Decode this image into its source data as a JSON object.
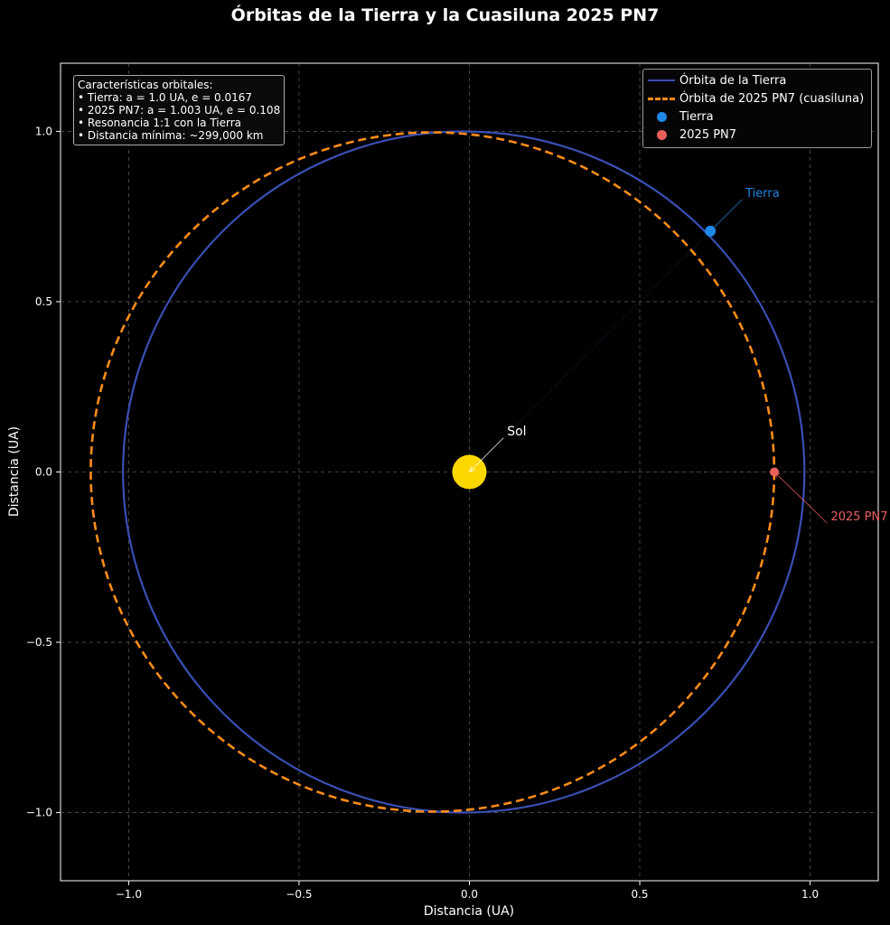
{
  "title": "Órbitas de la Tierra y la Cuasiluna 2025 PN7",
  "colors": {
    "background": "#000000",
    "earth_orbit": "#3a4fb3",
    "pn7_orbit": "#ff8c1a",
    "earth": "#1e88e5",
    "pn7": "#e8605c",
    "sun": "#ffd700"
  },
  "info_box": {
    "lines": [
      "Características orbitales:",
      "• Tierra: a = 1.0 UA, e = 0.0167",
      "• 2025 PN7: a = 1.003 UA, e = 0.108",
      "• Resonancia 1:1 con la Tierra",
      "• Distancia mínima: ~299,000 km"
    ]
  },
  "chart_data": {
    "type": "line",
    "title": "Órbitas de la Tierra y la Cuasiluna 2025 PN7",
    "xlabel": "Distancia (UA)",
    "ylabel": "Distancia (UA)",
    "xlim": [
      -1.2,
      1.2
    ],
    "ylim": [
      -1.2,
      1.2
    ],
    "xticks": [
      -1.0,
      -0.5,
      0.0,
      0.5,
      1.0
    ],
    "yticks": [
      -1.0,
      -0.5,
      0.0,
      0.5,
      1.0
    ],
    "xtick_labels": [
      "−1.0",
      "−0.5",
      "0.0",
      "0.5",
      "1.0"
    ],
    "ytick_labels": [
      "−1.0",
      "−0.5",
      "0.0",
      "0.5",
      "1.0"
    ],
    "grid": true,
    "legend_position": "top-right",
    "series": [
      {
        "name": "Órbita de la Tierra",
        "kind": "ellipse",
        "a": 1.0,
        "e": 0.0167,
        "style": "solid",
        "color": "#3a4fb3"
      },
      {
        "name": "Órbita de 2025 PN7 (cuasiluna)",
        "kind": "ellipse",
        "a": 1.003,
        "e": 0.108,
        "style": "dashed",
        "color": "#ff8c1a"
      },
      {
        "name": "Tierra",
        "kind": "point",
        "x": 0.707,
        "y": 0.707,
        "color": "#1e88e5"
      },
      {
        "name": "2025 PN7",
        "kind": "point",
        "x": 0.895,
        "y": 0.0,
        "color": "#e8605c"
      }
    ],
    "sun": {
      "x": 0.0,
      "y": 0.0,
      "color": "#ffd700"
    },
    "annotations": [
      {
        "text": "Sol",
        "target": [
          0.0,
          0.0
        ],
        "text_pos": [
          0.1,
          0.1
        ],
        "color": "#ffffff"
      },
      {
        "text": "Tierra",
        "target": [
          0.707,
          0.707
        ],
        "text_pos": [
          0.8,
          0.8
        ],
        "color": "#1e88e5"
      },
      {
        "text": "2025 PN7",
        "target": [
          0.895,
          0.0
        ],
        "text_pos": [
          1.05,
          -0.15
        ],
        "color": "#e8605c"
      }
    ]
  }
}
